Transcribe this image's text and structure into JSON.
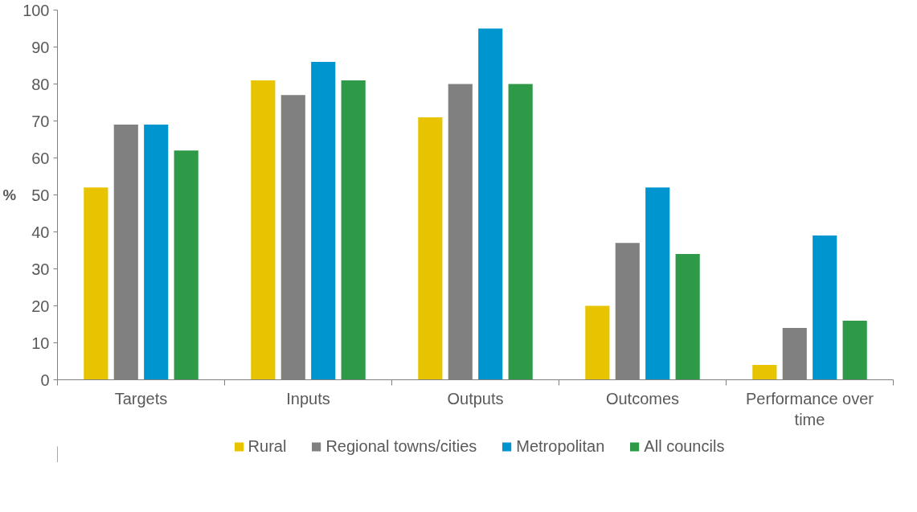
{
  "chart_data": {
    "type": "bar",
    "ylabel": "%",
    "categories": [
      "Targets",
      "Inputs",
      "Outputs",
      "Outcomes",
      "Performance over time"
    ],
    "series": [
      {
        "name": "Rural",
        "color": "#e8c300",
        "values": [
          52,
          81,
          71,
          20,
          4
        ]
      },
      {
        "name": "Regional towns/cities",
        "color": "#808080",
        "values": [
          69,
          77,
          80,
          37,
          14
        ]
      },
      {
        "name": "Metropolitan",
        "color": "#0095cf",
        "values": [
          69,
          86,
          95,
          52,
          39
        ]
      },
      {
        "name": "All councils",
        "color": "#2e9a47",
        "values": [
          62,
          81,
          80,
          34,
          16
        ]
      }
    ],
    "ylim": [
      0,
      100
    ],
    "yticks": [
      0,
      10,
      20,
      30,
      40,
      50,
      60,
      70,
      80,
      90,
      100
    ],
    "grid": false,
    "legend": "bottom"
  }
}
